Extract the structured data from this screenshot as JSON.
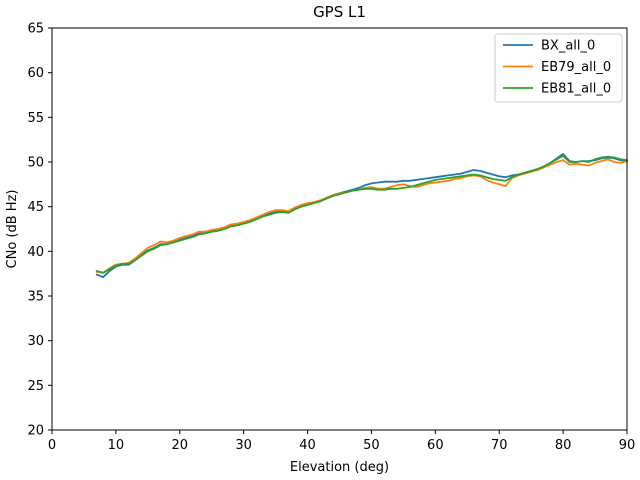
{
  "figure": {
    "background": "#ffffff",
    "spine_color": "#000000",
    "tick_color": "#000000"
  },
  "legend": {
    "border_color": "#cccccc",
    "background": "#ffffff"
  },
  "chart_data": {
    "type": "line",
    "title": "GPS L1",
    "xlabel": "Elevation (deg)",
    "ylabel": "CNo (dB Hz)",
    "xlim": [
      0,
      90
    ],
    "ylim": [
      20,
      65
    ],
    "xticks": [
      0,
      10,
      20,
      30,
      40,
      50,
      60,
      70,
      80,
      90
    ],
    "yticks": [
      20,
      25,
      30,
      35,
      40,
      45,
      50,
      55,
      60,
      65
    ],
    "grid": false,
    "legend_position": "upper right",
    "x": [
      7,
      8,
      9,
      10,
      11,
      12,
      13,
      14,
      15,
      16,
      17,
      18,
      19,
      20,
      21,
      22,
      23,
      24,
      25,
      26,
      27,
      28,
      29,
      30,
      31,
      32,
      33,
      34,
      35,
      36,
      37,
      38,
      39,
      40,
      41,
      42,
      43,
      44,
      45,
      46,
      47,
      48,
      49,
      50,
      51,
      52,
      53,
      54,
      55,
      56,
      57,
      58,
      59,
      60,
      61,
      62,
      63,
      64,
      65,
      66,
      67,
      68,
      69,
      70,
      71,
      72,
      73,
      74,
      75,
      76,
      77,
      78,
      79,
      80,
      81,
      82,
      83,
      84,
      85,
      86,
      87,
      88,
      89,
      90
    ],
    "series": [
      {
        "name": "BX_all_0",
        "color": "#1f77b4",
        "values": [
          37.4,
          37.1,
          37.8,
          38.3,
          38.5,
          38.5,
          39.0,
          39.6,
          40.1,
          40.4,
          40.8,
          40.8,
          41.0,
          41.3,
          41.5,
          41.7,
          42.0,
          42.1,
          42.3,
          42.4,
          42.6,
          42.9,
          43.0,
          43.2,
          43.4,
          43.7,
          44.0,
          44.2,
          44.4,
          44.5,
          44.4,
          44.8,
          45.1,
          45.3,
          45.5,
          45.7,
          46.0,
          46.3,
          46.5,
          46.7,
          46.9,
          47.1,
          47.4,
          47.6,
          47.7,
          47.8,
          47.8,
          47.8,
          47.9,
          47.9,
          48.0,
          48.1,
          48.2,
          48.3,
          48.4,
          48.5,
          48.6,
          48.7,
          48.9,
          49.1,
          49.0,
          48.8,
          48.6,
          48.4,
          48.3,
          48.5,
          48.6,
          48.8,
          49.0,
          49.2,
          49.5,
          49.9,
          50.4,
          50.9,
          50.1,
          50.0,
          50.1,
          50.1,
          50.2,
          50.4,
          50.5,
          50.4,
          50.2,
          50.1
        ]
      },
      {
        "name": "EB79_all_0",
        "color": "#ff7f0e",
        "values": [
          37.7,
          37.6,
          38.1,
          38.5,
          38.6,
          38.7,
          39.2,
          39.8,
          40.4,
          40.7,
          41.1,
          41.0,
          41.2,
          41.5,
          41.7,
          41.9,
          42.2,
          42.2,
          42.4,
          42.5,
          42.7,
          43.0,
          43.1,
          43.3,
          43.5,
          43.8,
          44.1,
          44.4,
          44.6,
          44.6,
          44.5,
          44.9,
          45.2,
          45.4,
          45.5,
          45.7,
          46.0,
          46.3,
          46.5,
          46.6,
          46.8,
          46.9,
          47.1,
          47.2,
          47.0,
          47.0,
          47.2,
          47.4,
          47.5,
          47.3,
          47.2,
          47.4,
          47.6,
          47.7,
          47.8,
          47.9,
          48.1,
          48.2,
          48.4,
          48.5,
          48.4,
          48.0,
          47.7,
          47.5,
          47.3,
          48.2,
          48.5,
          48.7,
          48.9,
          49.1,
          49.4,
          49.7,
          50.0,
          50.2,
          49.7,
          49.8,
          49.7,
          49.6,
          49.9,
          50.1,
          50.3,
          50.0,
          49.9,
          50.1
        ]
      },
      {
        "name": "EB81_all_0",
        "color": "#2ca02c",
        "values": [
          37.8,
          37.6,
          38.0,
          38.4,
          38.6,
          38.6,
          39.0,
          39.5,
          40.0,
          40.3,
          40.7,
          40.8,
          41.0,
          41.2,
          41.4,
          41.6,
          41.9,
          42.0,
          42.2,
          42.3,
          42.5,
          42.8,
          42.9,
          43.1,
          43.3,
          43.6,
          43.9,
          44.1,
          44.3,
          44.4,
          44.3,
          44.7,
          45.0,
          45.2,
          45.4,
          45.6,
          45.9,
          46.2,
          46.4,
          46.6,
          46.8,
          46.9,
          47.0,
          47.0,
          46.9,
          46.9,
          47.0,
          47.0,
          47.1,
          47.2,
          47.4,
          47.6,
          47.8,
          48.0,
          48.1,
          48.2,
          48.3,
          48.4,
          48.5,
          48.6,
          48.5,
          48.3,
          48.1,
          48.0,
          47.9,
          48.3,
          48.6,
          48.8,
          49.0,
          49.2,
          49.5,
          49.9,
          50.3,
          50.7,
          50.0,
          50.0,
          50.1,
          50.0,
          50.3,
          50.5,
          50.6,
          50.5,
          50.3,
          50.2
        ]
      }
    ]
  }
}
